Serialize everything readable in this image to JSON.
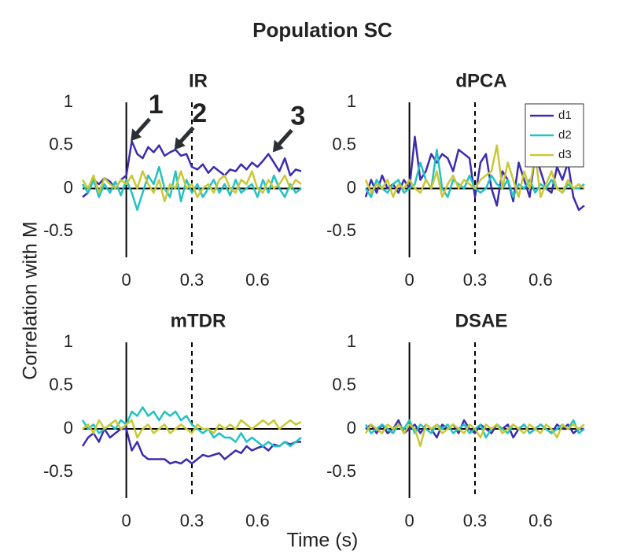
{
  "title": "Population SC",
  "xlabel": "Time (s)",
  "ylabel": "Correlation with M",
  "chart_data": [
    {
      "type": "line",
      "title": "IR",
      "xlim": [
        -0.2,
        0.8
      ],
      "ylim": [
        -0.8,
        1
      ],
      "xticks": [
        0,
        0.3,
        0.6
      ],
      "yticks": [
        -0.5,
        0,
        0.5,
        1
      ],
      "vlines": [
        {
          "x": 0,
          "style": "solid"
        },
        {
          "x": 0.3,
          "style": "dashed"
        }
      ],
      "hlines": [
        0
      ],
      "annotations": [
        {
          "text": "1",
          "x": 0.02,
          "y": 0.55
        },
        {
          "text": "2",
          "x": 0.22,
          "y": 0.45
        },
        {
          "text": "3",
          "x": 0.67,
          "y": 0.42
        }
      ],
      "x": [
        -0.2,
        -0.175,
        -0.15,
        -0.125,
        -0.1,
        -0.075,
        -0.05,
        -0.025,
        0,
        0.025,
        0.05,
        0.075,
        0.1,
        0.125,
        0.15,
        0.175,
        0.2,
        0.225,
        0.25,
        0.275,
        0.3,
        0.325,
        0.35,
        0.375,
        0.4,
        0.425,
        0.45,
        0.475,
        0.5,
        0.525,
        0.55,
        0.575,
        0.6,
        0.625,
        0.65,
        0.675,
        0.7,
        0.725,
        0.75,
        0.775,
        0.8
      ],
      "series": [
        {
          "name": "d1",
          "color": "#3b2bb0",
          "values": [
            -0.1,
            -0.05,
            0.1,
            0.05,
            0.12,
            0.08,
            0.0,
            0.1,
            0.15,
            0.55,
            0.4,
            0.35,
            0.48,
            0.42,
            0.5,
            0.38,
            0.42,
            0.45,
            0.38,
            0.4,
            0.25,
            0.22,
            0.28,
            0.18,
            0.25,
            0.2,
            0.15,
            0.22,
            0.2,
            0.28,
            0.22,
            0.3,
            0.25,
            0.32,
            0.4,
            0.3,
            0.2,
            0.35,
            0.15,
            0.22,
            0.2
          ]
        },
        {
          "name": "d2",
          "color": "#22c1c3",
          "values": [
            0.05,
            -0.05,
            0.1,
            -0.1,
            0.05,
            -0.05,
            0.08,
            -0.08,
            0.1,
            -0.05,
            -0.25,
            -0.05,
            0.15,
            0.05,
            0.25,
            0.0,
            -0.1,
            0.2,
            -0.15,
            0.1,
            -0.05,
            0.05,
            -0.1,
            0.0,
            0.1,
            -0.05,
            0.05,
            -0.08,
            0.1,
            -0.05,
            0.0,
            0.05,
            -0.1,
            0.1,
            -0.05,
            0.15,
            0.0,
            -0.1,
            0.05,
            -0.05,
            0.0
          ]
        },
        {
          "name": "d3",
          "color": "#c9c834",
          "values": [
            0.1,
            0.0,
            0.15,
            -0.05,
            0.12,
            0.05,
            0.0,
            0.1,
            0.05,
            0.15,
            0.0,
            0.2,
            0.05,
            -0.05,
            0.1,
            -0.15,
            0.05,
            0.0,
            0.2,
            0.0,
            0.05,
            -0.1,
            0.0,
            0.05,
            -0.05,
            0.1,
            0.15,
            0.0,
            -0.05,
            0.1,
            0.05,
            0.2,
            0.0,
            -0.05,
            0.1,
            0.0,
            0.05,
            0.15,
            0.0,
            0.1,
            0.05
          ]
        }
      ]
    },
    {
      "type": "line",
      "title": "dPCA",
      "xlim": [
        -0.2,
        0.8
      ],
      "ylim": [
        -0.8,
        1
      ],
      "xticks": [
        0,
        0.3,
        0.6
      ],
      "yticks": [
        -0.5,
        0,
        0.5,
        1
      ],
      "vlines": [
        {
          "x": 0,
          "style": "solid"
        },
        {
          "x": 0.3,
          "style": "dashed"
        }
      ],
      "hlines": [
        0
      ],
      "legend": "upper right",
      "x": [
        -0.2,
        -0.175,
        -0.15,
        -0.125,
        -0.1,
        -0.075,
        -0.05,
        -0.025,
        0,
        0.025,
        0.05,
        0.075,
        0.1,
        0.125,
        0.15,
        0.175,
        0.2,
        0.225,
        0.25,
        0.275,
        0.3,
        0.325,
        0.35,
        0.375,
        0.4,
        0.425,
        0.45,
        0.475,
        0.5,
        0.525,
        0.55,
        0.575,
        0.6,
        0.625,
        0.65,
        0.675,
        0.7,
        0.725,
        0.75,
        0.775,
        0.8
      ],
      "series": [
        {
          "name": "d1",
          "color": "#3b2bb0",
          "values": [
            -0.1,
            0.1,
            -0.05,
            0.15,
            0.0,
            0.05,
            -0.05,
            0.1,
            0.0,
            0.6,
            0.1,
            0.2,
            0.4,
            0.3,
            0.4,
            0.35,
            0.2,
            0.45,
            0.4,
            0.35,
            -0.1,
            0.3,
            0.4,
            0.0,
            -0.2,
            0.2,
            0.1,
            -0.15,
            0.3,
            0.1,
            -0.1,
            0.4,
            0.2,
            0.0,
            -0.05,
            0.25,
            0.1,
            0.3,
            -0.1,
            -0.25,
            -0.2
          ]
        },
        {
          "name": "d2",
          "color": "#22c1c3",
          "values": [
            0.0,
            -0.1,
            0.1,
            0.0,
            -0.05,
            0.05,
            0.1,
            -0.05,
            0.0,
            0.05,
            0.3,
            0.1,
            0.0,
            0.45,
            0.0,
            -0.1,
            0.1,
            0.05,
            0.0,
            0.15,
            0.0,
            -0.05,
            0.0,
            0.15,
            0.05,
            0.0,
            0.1,
            -0.1,
            0.05,
            0.0,
            0.1,
            -0.05,
            0.05,
            0.0,
            0.1,
            0.0,
            -0.05,
            0.05,
            0.0,
            0.0,
            0.05
          ]
        },
        {
          "name": "d3",
          "color": "#c9c834",
          "values": [
            0.1,
            -0.05,
            0.05,
            0.0,
            0.1,
            -0.1,
            0.05,
            0.0,
            0.1,
            0.0,
            -0.05,
            0.1,
            0.0,
            0.2,
            -0.1,
            0.05,
            0.15,
            0.0,
            0.1,
            0.05,
            0.0,
            0.1,
            0.15,
            0.2,
            0.5,
            0.0,
            0.3,
            0.1,
            -0.1,
            0.2,
            0.0,
            0.4,
            -0.1,
            0.05,
            0.2,
            0.0,
            -0.05,
            0.1,
            0.0,
            0.05,
            0.0
          ]
        }
      ]
    },
    {
      "type": "line",
      "title": "mTDR",
      "xlim": [
        -0.2,
        0.8
      ],
      "ylim": [
        -0.8,
        1
      ],
      "xticks": [
        0,
        0.3,
        0.6
      ],
      "yticks": [
        -0.5,
        0,
        0.5,
        1
      ],
      "vlines": [
        {
          "x": 0,
          "style": "solid"
        },
        {
          "x": 0.3,
          "style": "dashed"
        }
      ],
      "hlines": [
        0
      ],
      "x": [
        -0.2,
        -0.175,
        -0.15,
        -0.125,
        -0.1,
        -0.075,
        -0.05,
        -0.025,
        0,
        0.025,
        0.05,
        0.075,
        0.1,
        0.125,
        0.15,
        0.175,
        0.2,
        0.225,
        0.25,
        0.275,
        0.3,
        0.325,
        0.35,
        0.375,
        0.4,
        0.425,
        0.45,
        0.475,
        0.5,
        0.525,
        0.55,
        0.575,
        0.6,
        0.625,
        0.65,
        0.675,
        0.7,
        0.725,
        0.75,
        0.775,
        0.8
      ],
      "series": [
        {
          "name": "d1",
          "color": "#3b2bb0",
          "values": [
            -0.2,
            -0.1,
            -0.05,
            -0.15,
            0.0,
            -0.1,
            -0.05,
            0.0,
            0.0,
            -0.25,
            -0.15,
            -0.3,
            -0.35,
            -0.35,
            -0.35,
            -0.35,
            -0.4,
            -0.38,
            -0.4,
            -0.35,
            -0.4,
            -0.35,
            -0.3,
            -0.32,
            -0.3,
            -0.28,
            -0.35,
            -0.3,
            -0.25,
            -0.28,
            -0.2,
            -0.25,
            -0.22,
            -0.2,
            -0.25,
            -0.18,
            -0.2,
            -0.15,
            -0.18,
            -0.15,
            -0.15
          ]
        },
        {
          "name": "d2",
          "color": "#22c1c3",
          "values": [
            0.1,
            0.0,
            0.05,
            -0.05,
            0.0,
            0.05,
            0.0,
            0.1,
            0.05,
            0.2,
            0.15,
            0.25,
            0.15,
            0.2,
            0.1,
            0.2,
            0.15,
            0.2,
            0.1,
            0.15,
            0.05,
            0.0,
            -0.05,
            0.0,
            -0.1,
            -0.05,
            -0.1,
            -0.1,
            -0.15,
            -0.05,
            -0.15,
            -0.1,
            -0.15,
            -0.2,
            -0.15,
            -0.2,
            -0.2,
            -0.15,
            -0.2,
            -0.15,
            -0.1
          ]
        },
        {
          "name": "d3",
          "color": "#c9c834",
          "values": [
            0.0,
            0.05,
            -0.05,
            0.1,
            0.0,
            0.05,
            0.1,
            0.0,
            0.05,
            0.1,
            -0.1,
            0.0,
            0.05,
            -0.05,
            0.0,
            0.05,
            -0.05,
            0.0,
            0.05,
            0.0,
            -0.05,
            0.05,
            0.0,
            0.0,
            -0.05,
            0.05,
            0.0,
            0.05,
            0.0,
            0.1,
            0.05,
            0.0,
            0.05,
            0.1,
            0.05,
            0.1,
            0.0,
            0.05,
            0.1,
            0.05,
            0.08
          ]
        }
      ]
    },
    {
      "type": "line",
      "title": "DSAE",
      "xlim": [
        -0.2,
        0.8
      ],
      "ylim": [
        -0.8,
        1
      ],
      "xticks": [
        0,
        0.3,
        0.6
      ],
      "yticks": [
        -0.5,
        0,
        0.5,
        1
      ],
      "vlines": [
        {
          "x": 0,
          "style": "solid"
        },
        {
          "x": 0.3,
          "style": "dashed"
        }
      ],
      "hlines": [
        0
      ],
      "x": [
        -0.2,
        -0.175,
        -0.15,
        -0.125,
        -0.1,
        -0.075,
        -0.05,
        -0.025,
        0,
        0.025,
        0.05,
        0.075,
        0.1,
        0.125,
        0.15,
        0.175,
        0.2,
        0.225,
        0.25,
        0.275,
        0.3,
        0.325,
        0.35,
        0.375,
        0.4,
        0.425,
        0.45,
        0.475,
        0.5,
        0.525,
        0.55,
        0.575,
        0.6,
        0.625,
        0.65,
        0.675,
        0.7,
        0.725,
        0.75,
        0.775,
        0.8
      ],
      "series": [
        {
          "name": "d1",
          "color": "#3b2bb0",
          "values": [
            0.0,
            0.05,
            -0.05,
            0.05,
            -0.05,
            0.0,
            0.1,
            -0.05,
            0.0,
            0.05,
            -0.05,
            0.05,
            0.0,
            -0.1,
            0.05,
            0.0,
            0.05,
            -0.05,
            0.1,
            0.0,
            -0.05,
            0.05,
            0.0,
            -0.05,
            0.05,
            0.0,
            0.05,
            -0.1,
            0.0,
            0.05,
            -0.05,
            0.0,
            0.05,
            0.0,
            -0.05,
            0.05,
            0.0,
            0.05,
            -0.05,
            0.0,
            0.0
          ]
        },
        {
          "name": "d2",
          "color": "#22c1c3",
          "values": [
            0.05,
            -0.05,
            0.0,
            0.05,
            0.0,
            -0.05,
            0.05,
            0.0,
            0.1,
            -0.05,
            0.05,
            0.0,
            -0.05,
            0.05,
            0.0,
            0.05,
            -0.05,
            0.0,
            0.05,
            -0.05,
            0.0,
            0.05,
            -0.1,
            0.0,
            0.05,
            0.0,
            -0.05,
            0.05,
            0.0,
            0.05,
            -0.05,
            0.0,
            0.05,
            0.0,
            -0.05,
            0.0,
            0.05,
            0.0,
            0.1,
            -0.05,
            0.0
          ]
        },
        {
          "name": "d3",
          "color": "#c9c834",
          "values": [
            -0.05,
            0.05,
            0.0,
            -0.05,
            0.05,
            0.0,
            0.05,
            -0.05,
            0.05,
            0.0,
            -0.2,
            0.05,
            0.0,
            0.05,
            -0.05,
            0.0,
            0.05,
            0.0,
            -0.05,
            0.05,
            0.0,
            -0.1,
            0.05,
            0.0,
            0.05,
            -0.05,
            0.0,
            0.05,
            0.0,
            -0.05,
            0.05,
            0.0,
            -0.05,
            0.05,
            0.0,
            -0.1,
            0.05,
            0.0,
            0.05,
            0.0,
            0.05
          ]
        }
      ]
    }
  ]
}
